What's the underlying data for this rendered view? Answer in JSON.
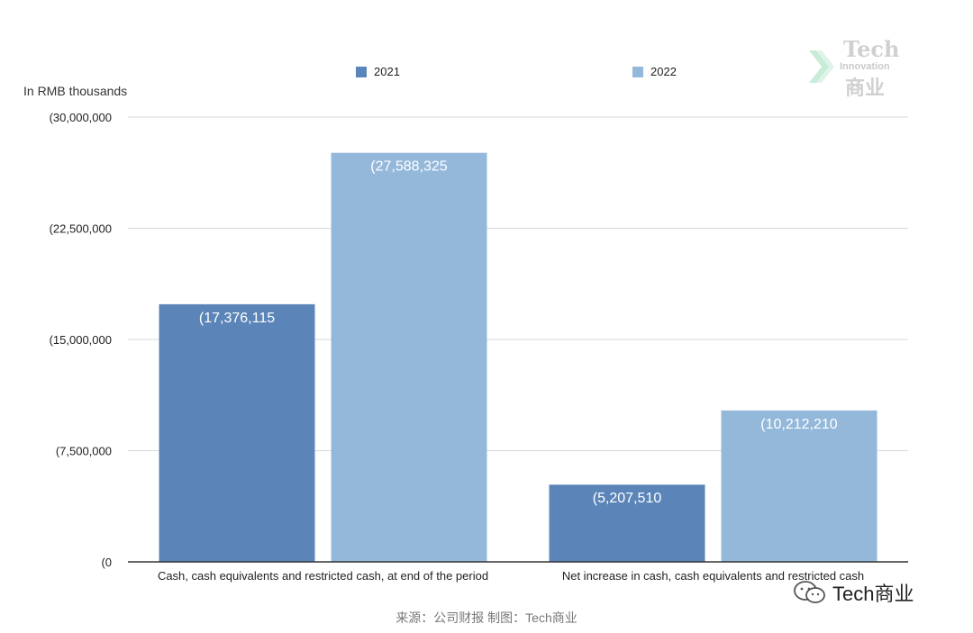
{
  "unit_label": "In RMB thousands",
  "legend": [
    {
      "label": "2021",
      "color": "#5b85b8"
    },
    {
      "label": "2022",
      "color": "#94b8da"
    }
  ],
  "logo": {
    "tech": "Tech",
    "innovation": "Innovation",
    "cn": "商业"
  },
  "wechat_text": "Tech商业",
  "source_text": "来源：公司财报 制图：Tech商业",
  "chart_data": {
    "type": "bar",
    "categories": [
      "Cash, cash equivalents and restricted cash, at end of the period",
      "Net increase in cash, cash equivalents and restricted cash"
    ],
    "series": [
      {
        "name": "2021",
        "color": "#5b85b8",
        "values": [
          17376115,
          5207510
        ],
        "labels": [
          "(17,376,115",
          "(5,207,510"
        ]
      },
      {
        "name": "2022",
        "color": "#94b8da",
        "values": [
          27588325,
          10212210
        ],
        "labels": [
          "(27,588,325",
          "(10,212,210"
        ]
      }
    ],
    "yticks": [
      0,
      7500000,
      15000000,
      22500000,
      30000000
    ],
    "ytick_labels": [
      "(0",
      "(7,500,000",
      "(15,000,000",
      "(22,500,000",
      "(30,000,000"
    ],
    "ylim": [
      0,
      30000000
    ],
    "ylabel": "In RMB thousands",
    "grid": true,
    "legend_position": "top"
  }
}
